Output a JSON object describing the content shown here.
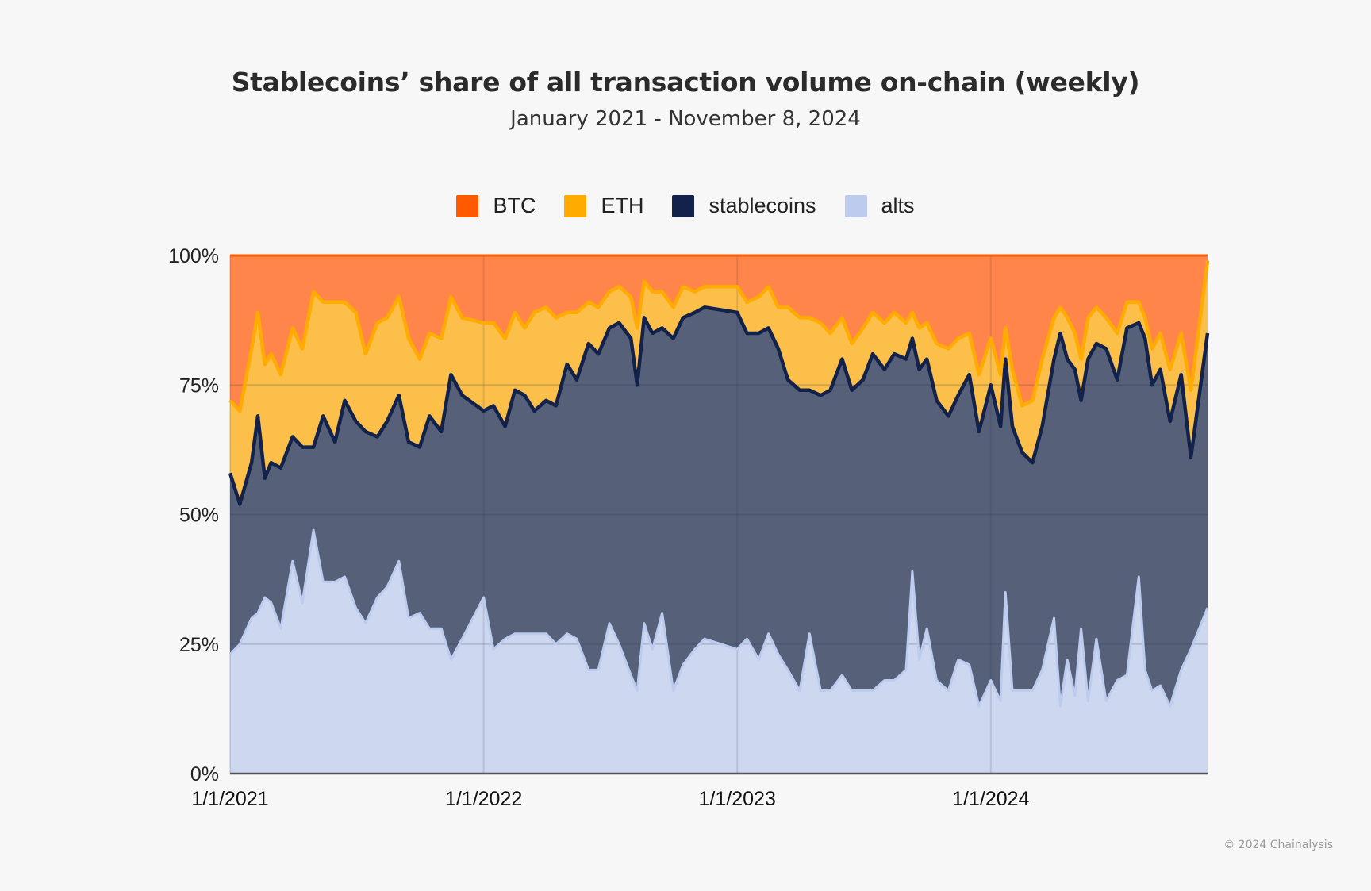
{
  "chart_data": {
    "type": "area",
    "stacked": true,
    "normalized": true,
    "title": "Stablecoins’ share of all transaction volume on-chain (weekly)",
    "subtitle": "January 2021 - November 8, 2024",
    "xlabel": "",
    "ylabel": "",
    "xlim": [
      "2021-01-01",
      "2024-11-08"
    ],
    "ylim": [
      0,
      100
    ],
    "y_ticks": [
      "0%",
      "25%",
      "50%",
      "75%",
      "100%"
    ],
    "y_tick_values": [
      0,
      25,
      50,
      75,
      100
    ],
    "x_ticks": [
      "1/1/2021",
      "1/1/2022",
      "1/1/2023",
      "1/1/2024"
    ],
    "x_tick_values": [
      "2021-01-01",
      "2022-01-01",
      "2023-01-01",
      "2024-01-01"
    ],
    "grid": true,
    "legend_position": "top",
    "x": [
      "2021-01-01",
      "2021-01-15",
      "2021-02-01",
      "2021-02-10",
      "2021-02-20",
      "2021-03-01",
      "2021-03-15",
      "2021-04-01",
      "2021-04-15",
      "2021-05-01",
      "2021-05-15",
      "2021-06-01",
      "2021-06-15",
      "2021-07-01",
      "2021-07-15",
      "2021-08-01",
      "2021-08-15",
      "2021-09-01",
      "2021-09-15",
      "2021-10-01",
      "2021-10-15",
      "2021-11-01",
      "2021-11-15",
      "2021-12-01",
      "2022-01-01",
      "2022-01-15",
      "2022-02-01",
      "2022-02-15",
      "2022-03-01",
      "2022-03-15",
      "2022-04-01",
      "2022-04-15",
      "2022-05-01",
      "2022-05-15",
      "2022-06-01",
      "2022-06-15",
      "2022-07-01",
      "2022-07-15",
      "2022-08-01",
      "2022-08-10",
      "2022-08-20",
      "2022-09-01",
      "2022-09-15",
      "2022-10-01",
      "2022-10-15",
      "2022-11-01",
      "2022-11-15",
      "2023-01-01",
      "2023-01-15",
      "2023-02-01",
      "2023-02-15",
      "2023-03-01",
      "2023-03-15",
      "2023-04-01",
      "2023-04-15",
      "2023-05-01",
      "2023-05-15",
      "2023-06-01",
      "2023-06-15",
      "2023-07-01",
      "2023-07-15",
      "2023-08-01",
      "2023-08-15",
      "2023-09-01",
      "2023-09-10",
      "2023-09-20",
      "2023-10-01",
      "2023-10-15",
      "2023-11-01",
      "2023-11-15",
      "2023-12-01",
      "2023-12-15",
      "2024-01-01",
      "2024-01-15",
      "2024-01-22",
      "2024-02-01",
      "2024-02-15",
      "2024-03-01",
      "2024-03-15",
      "2024-04-01",
      "2024-04-10",
      "2024-04-20",
      "2024-05-01",
      "2024-05-10",
      "2024-05-20",
      "2024-06-01",
      "2024-06-15",
      "2024-07-01",
      "2024-07-15",
      "2024-08-01",
      "2024-08-10",
      "2024-08-20",
      "2024-09-01",
      "2024-09-15",
      "2024-10-01",
      "2024-10-15",
      "2024-11-08"
    ],
    "series": [
      {
        "name": "alts",
        "color": "#bccbee",
        "fill": "#cdd8f0",
        "values": [
          23,
          25,
          30,
          31,
          34,
          33,
          28,
          41,
          33,
          47,
          37,
          37,
          38,
          32,
          29,
          34,
          36,
          41,
          30,
          31,
          28,
          28,
          22,
          26,
          34,
          24,
          26,
          27,
          27,
          27,
          27,
          25,
          27,
          26,
          20,
          20,
          29,
          25,
          19,
          16,
          29,
          24,
          31,
          16,
          21,
          24,
          26,
          24,
          26,
          22,
          27,
          23,
          20,
          16,
          27,
          16,
          16,
          19,
          16,
          16,
          16,
          18,
          18,
          20,
          39,
          22,
          28,
          18,
          16,
          22,
          21,
          13,
          18,
          14,
          35,
          16,
          16,
          16,
          20,
          30,
          13,
          22,
          15,
          28,
          14,
          26,
          14,
          18,
          19,
          38,
          20,
          16,
          17,
          13,
          20,
          24,
          32
        ]
      },
      {
        "name": "stablecoins",
        "color": "#13224a",
        "fill": "#566079",
        "values": [
          35,
          27,
          30,
          38,
          23,
          27,
          31,
          24,
          30,
          16,
          32,
          27,
          34,
          36,
          37,
          31,
          32,
          32,
          34,
          32,
          41,
          38,
          55,
          47,
          36,
          47,
          41,
          47,
          46,
          43,
          45,
          46,
          52,
          50,
          63,
          61,
          57,
          62,
          65,
          59,
          59,
          61,
          55,
          68,
          67,
          65,
          64,
          65,
          59,
          63,
          59,
          59,
          56,
          58,
          47,
          57,
          58,
          61,
          58,
          60,
          65,
          60,
          63,
          60,
          45,
          56,
          52,
          54,
          53,
          51,
          56,
          53,
          57,
          53,
          45,
          51,
          46,
          44,
          47,
          50,
          72,
          58,
          63,
          44,
          66,
          57,
          68,
          58,
          67,
          49,
          64,
          59,
          61,
          55,
          57,
          37,
          53
        ]
      },
      {
        "name": "ETH",
        "color": "#ffab00",
        "fill": "#fbbf4a",
        "values": [
          14,
          18,
          22,
          20,
          22,
          21,
          18,
          21,
          19,
          30,
          22,
          27,
          19,
          21,
          15,
          22,
          20,
          19,
          20,
          17,
          16,
          18,
          15,
          15,
          17,
          16,
          17,
          15,
          13,
          19,
          18,
          17,
          10,
          13,
          8,
          9,
          7,
          7,
          8,
          11,
          7,
          8,
          7,
          6,
          6,
          4,
          4,
          5,
          6,
          7,
          8,
          8,
          14,
          14,
          14,
          14,
          11,
          8,
          9,
          10,
          8,
          9,
          8,
          7,
          5,
          8,
          7,
          11,
          13,
          11,
          8,
          11,
          9,
          10,
          6,
          11,
          9,
          12,
          13,
          8,
          5,
          8,
          7,
          8,
          8,
          7,
          6,
          9,
          5,
          4,
          4,
          7,
          7,
          10,
          8,
          13,
          14
        ]
      },
      {
        "name": "BTC",
        "color": "#ff5a00",
        "fill": "#ff854a",
        "values": [
          28,
          30,
          18,
          11,
          21,
          19,
          23,
          14,
          18,
          7,
          9,
          9,
          9,
          11,
          19,
          13,
          12,
          8,
          16,
          20,
          15,
          16,
          8,
          12,
          13,
          13,
          16,
          11,
          14,
          11,
          10,
          12,
          11,
          11,
          9,
          10,
          7,
          6,
          8,
          14,
          5,
          7,
          7,
          10,
          6,
          7,
          6,
          6,
          9,
          8,
          6,
          10,
          10,
          12,
          12,
          13,
          15,
          12,
          17,
          14,
          11,
          13,
          11,
          13,
          11,
          14,
          13,
          17,
          18,
          16,
          15,
          23,
          16,
          23,
          14,
          22,
          29,
          28,
          20,
          12,
          10,
          12,
          15,
          20,
          12,
          10,
          12,
          15,
          9,
          9,
          12,
          18,
          15,
          22,
          15,
          26,
          1
        ]
      }
    ]
  },
  "legend": [
    {
      "label": "BTC",
      "color": "#ff5a00"
    },
    {
      "label": "ETH",
      "color": "#ffab00"
    },
    {
      "label": "stablecoins",
      "color": "#13224a"
    },
    {
      "label": "alts",
      "color": "#bccbee"
    }
  ],
  "footer": {
    "copyright": "© 2024 Chainalysis"
  }
}
